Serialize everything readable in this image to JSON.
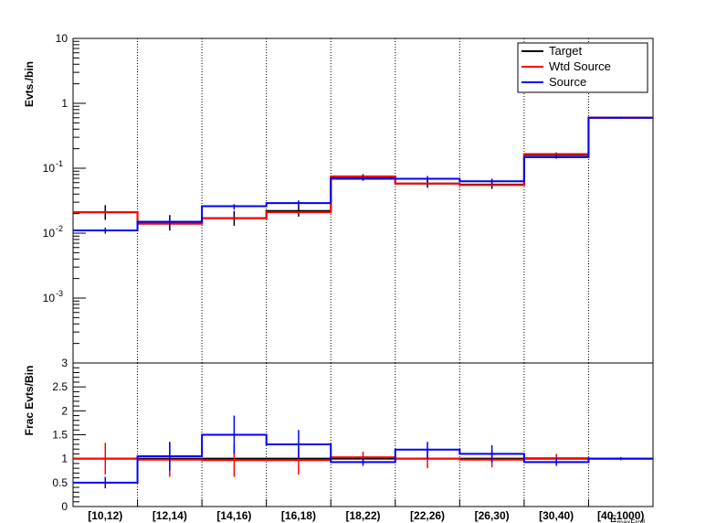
{
  "chart_data": [
    {
      "type": "histogram",
      "ylabel": "Evts./bin",
      "yscale": "log",
      "ylim": [
        0.0001,
        10
      ],
      "yticks": [
        {
          "v": 10,
          "m": "10",
          "e": ""
        },
        {
          "v": 1,
          "m": "1",
          "e": ""
        },
        {
          "v": 0.1,
          "m": "10",
          "e": "-1"
        },
        {
          "v": 0.01,
          "m": "10",
          "e": "-2"
        },
        {
          "v": 0.001,
          "m": "10",
          "e": "-3"
        }
      ],
      "legend": {
        "position": "top-right",
        "entries": [
          "Target",
          "Wtd Source",
          "Source"
        ]
      },
      "colors": {
        "Target": "#000000",
        "Wtd Source": "#ff0000",
        "Source": "#0000ff"
      },
      "grid_x": true,
      "categories": [
        "[10,12)",
        "[12,14)",
        "[14,16)",
        "[16,18)",
        "[18,22)",
        "[22,26)",
        "[26,30)",
        "[30,40)",
        "[40,1000)"
      ],
      "series": [
        {
          "name": "Target",
          "values": [
            0.021,
            0.014,
            0.017,
            0.022,
            0.072,
            0.058,
            0.056,
            0.16,
            0.6
          ],
          "err_lo": [
            0.016,
            0.011,
            0.013,
            0.018,
            0.065,
            0.05,
            0.048,
            0.145,
            0.58
          ],
          "err_hi": [
            0.027,
            0.019,
            0.022,
            0.027,
            0.081,
            0.066,
            0.064,
            0.175,
            0.62
          ]
        },
        {
          "name": "Wtd Source",
          "values": [
            0.021,
            0.014,
            0.017,
            0.021,
            0.075,
            0.058,
            0.055,
            0.165,
            0.6
          ]
        },
        {
          "name": "Source",
          "values": [
            0.011,
            0.015,
            0.026,
            0.029,
            0.069,
            0.069,
            0.063,
            0.148,
            0.6
          ],
          "err_lo": [
            0.0098,
            0.0135,
            0.023,
            0.026,
            0.064,
            0.062,
            0.057,
            0.14,
            0.58
          ],
          "err_hi": [
            0.0122,
            0.0165,
            0.028,
            0.032,
            0.074,
            0.076,
            0.069,
            0.156,
            0.62
          ]
        }
      ]
    },
    {
      "type": "histogram",
      "ylabel": "Frac Evts/Bin",
      "xlabel": "E_{maxFroll}",
      "ylim": [
        0,
        3
      ],
      "yticks": [
        "0",
        "0.5",
        "1",
        "1.5",
        "2",
        "2.5",
        "3"
      ],
      "categories": [
        "[10,12)",
        "[12,14)",
        "[14,16)",
        "[16,18)",
        "[18,22)",
        "[22,26)",
        "[26,30)",
        "[30,40)",
        "[40,1000)"
      ],
      "series": [
        {
          "name": "Target",
          "values": [
            1,
            1,
            1,
            1,
            1,
            1,
            1,
            1,
            1
          ]
        },
        {
          "name": "Wtd Source",
          "values": [
            1,
            0.98,
            0.97,
            0.97,
            1.03,
            1.0,
            0.98,
            1.01,
            1.0
          ],
          "err_lo": [
            0.67,
            0.62,
            0.62,
            0.67,
            0.9,
            0.8,
            0.82,
            0.9,
            0.97
          ],
          "err_hi": [
            1.33,
            1.35,
            1.3,
            1.25,
            1.15,
            1.2,
            1.15,
            1.1,
            1.03
          ]
        },
        {
          "name": "Source",
          "values": [
            0.5,
            1.05,
            1.5,
            1.3,
            0.93,
            1.19,
            1.1,
            0.93,
            1.0
          ],
          "err_lo": [
            0.38,
            0.75,
            1.1,
            1.0,
            0.85,
            1.0,
            0.92,
            0.85,
            0.97
          ],
          "err_hi": [
            0.62,
            1.35,
            1.9,
            1.6,
            1.02,
            1.35,
            1.28,
            1.02,
            1.03
          ]
        }
      ]
    }
  ]
}
